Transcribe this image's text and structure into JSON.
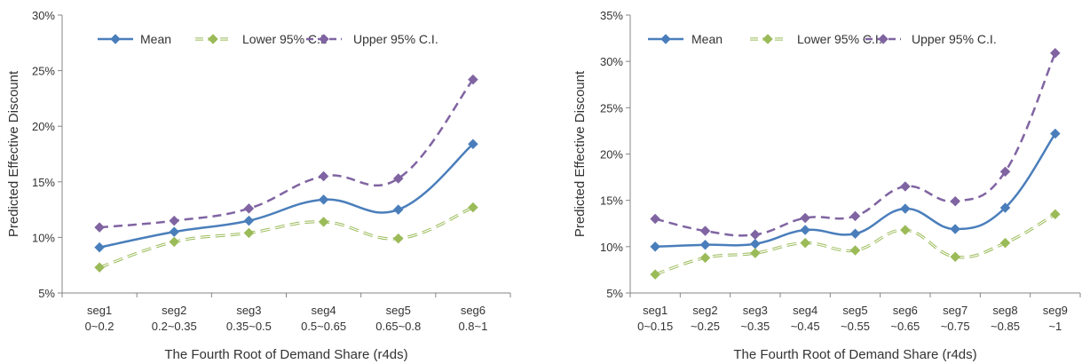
{
  "colors": {
    "mean": "#4a7ebb",
    "lower": "#9bbb59",
    "upper": "#8064a2",
    "axis": "#868686",
    "grid": "#d9d9d9",
    "text": "#333333"
  },
  "chart_data": [
    {
      "type": "line",
      "title": "",
      "xlabel": "The Fourth Root of Demand Share (r4ds)",
      "ylabel": "Predicted Effective Discount",
      "ylim": [
        0.05,
        0.3
      ],
      "yticks": [
        "5%",
        "10%",
        "15%",
        "20%",
        "25%",
        "30%"
      ],
      "grid": false,
      "legend_position": "top",
      "categories": [
        [
          "seg1",
          "0~0.2"
        ],
        [
          "seg2",
          "0.2~0.35"
        ],
        [
          "seg3",
          "0.35~0.5"
        ],
        [
          "seg4",
          "0.5~0.65"
        ],
        [
          "seg5",
          "0.65~0.8"
        ],
        [
          "seg6",
          "0.8~1"
        ]
      ],
      "series": [
        {
          "name": "Mean",
          "style": "solid",
          "values": [
            0.091,
            0.105,
            0.115,
            0.134,
            0.125,
            0.184
          ]
        },
        {
          "name": "Lower 95% C.I.",
          "style": "double-dash",
          "values": [
            0.073,
            0.096,
            0.104,
            0.114,
            0.099,
            0.127
          ]
        },
        {
          "name": "Upper 95% C.I.",
          "style": "dash",
          "values": [
            0.109,
            0.115,
            0.126,
            0.155,
            0.153,
            0.242
          ]
        }
      ]
    },
    {
      "type": "line",
      "title": "",
      "xlabel": "The Fourth Root of Demand Share (r4ds)",
      "ylabel": "Predicted Effective Discount",
      "ylim": [
        0.05,
        0.35
      ],
      "yticks": [
        "5%",
        "10%",
        "15%",
        "20%",
        "25%",
        "30%",
        "35%"
      ],
      "grid": false,
      "legend_position": "top",
      "categories": [
        [
          "seg1",
          "0~0.15"
        ],
        [
          "seg2",
          "~0.25"
        ],
        [
          "seg3",
          "~0.35"
        ],
        [
          "seg4",
          "~0.45"
        ],
        [
          "seg5",
          "~0.55"
        ],
        [
          "seg6",
          "~0.65"
        ],
        [
          "seg7",
          "~0.75"
        ],
        [
          "seg8",
          "~0.85"
        ],
        [
          "seg9",
          "~1"
        ]
      ],
      "series": [
        {
          "name": "Mean",
          "style": "solid",
          "values": [
            0.1,
            0.102,
            0.103,
            0.118,
            0.114,
            0.141,
            0.119,
            0.142,
            0.222
          ]
        },
        {
          "name": "Lower 95% C.I.",
          "style": "double-dash",
          "values": [
            0.07,
            0.088,
            0.093,
            0.104,
            0.096,
            0.118,
            0.089,
            0.104,
            0.135
          ]
        },
        {
          "name": "Upper 95% C.I.",
          "style": "dash",
          "values": [
            0.13,
            0.117,
            0.113,
            0.131,
            0.133,
            0.165,
            0.149,
            0.181,
            0.309
          ]
        }
      ]
    }
  ]
}
